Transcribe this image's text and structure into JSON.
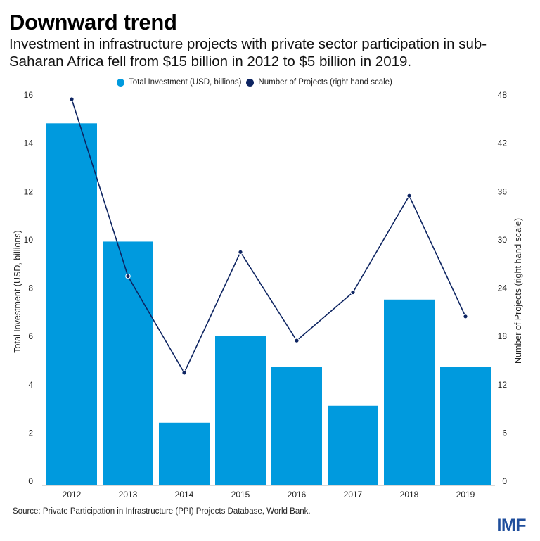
{
  "header": {
    "title": "Downward trend",
    "subtitle": "Investment in infrastructure projects with private sector participation in sub-Saharan Africa fell from $15 billion in 2012 to $5 billion in 2019."
  },
  "footer": {
    "source": "Source: Private Participation in Infrastructure (PPI) Projects Database, World Bank.",
    "logo": "IMF"
  },
  "colors": {
    "bar": "#009ade",
    "line": "#0d2461",
    "logo": "#1f4e9c"
  },
  "chart_data": {
    "type": "bar+line",
    "title": "Downward trend",
    "categories": [
      "2012",
      "2013",
      "2014",
      "2015",
      "2016",
      "2017",
      "2018",
      "2019"
    ],
    "series": [
      {
        "name": "Total Investment (USD, billions)",
        "type": "bar",
        "axis": "left",
        "color": "#009ade",
        "values": [
          15.0,
          10.1,
          2.6,
          6.2,
          4.9,
          3.3,
          7.7,
          4.9
        ]
      },
      {
        "name": "Number of Projects (right hand scale)",
        "type": "line",
        "axis": "right",
        "color": "#0d2461",
        "values": [
          48,
          26,
          14,
          29,
          18,
          24,
          36,
          21
        ]
      }
    ],
    "xlabel": "",
    "ylabel": "Total Investment (USD, billions)",
    "y2label": "Number of Projects (right hand scale)",
    "ylim": [
      0,
      16
    ],
    "y2lim": [
      0,
      48
    ],
    "yticks": [
      0,
      2,
      4,
      6,
      8,
      10,
      12,
      14,
      16
    ],
    "y2ticks": [
      0,
      6,
      12,
      18,
      24,
      30,
      36,
      42,
      48
    ],
    "grid": false,
    "legend": "top-center"
  }
}
